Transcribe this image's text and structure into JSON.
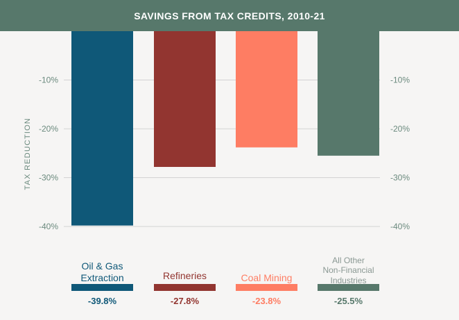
{
  "chart_data": {
    "type": "bar",
    "title": "SAVINGS FROM TAX CREDITS, 2010-21",
    "ylabel": "TAX REDUCTION",
    "ylim": [
      -40,
      0
    ],
    "yticks": [
      -10,
      -20,
      -30,
      -40
    ],
    "ytick_labels": [
      "-10%",
      "-20%",
      "-30%",
      "-40%"
    ],
    "grid": true,
    "categories": [
      "Oil & Gas Extraction",
      "Refineries",
      "Coal Mining",
      "All Other Non-Financial Industries"
    ],
    "category_lines": [
      [
        "Oil & Gas",
        "Extraction"
      ],
      [
        "Refineries"
      ],
      [
        "Coal Mining"
      ],
      [
        "All Other",
        "Non-Financial",
        "Industries"
      ]
    ],
    "values": [
      -39.8,
      -27.8,
      -23.8,
      -25.5
    ],
    "value_labels": [
      "-39.8%",
      "-27.8%",
      "-23.8%",
      "-25.5%"
    ],
    "colors": [
      "#0f5878",
      "#923530",
      "#fe7d63",
      "#57786b"
    ],
    "label_colors": [
      "#0f5878",
      "#923530",
      "#fe7d63",
      "#8a9893"
    ]
  }
}
